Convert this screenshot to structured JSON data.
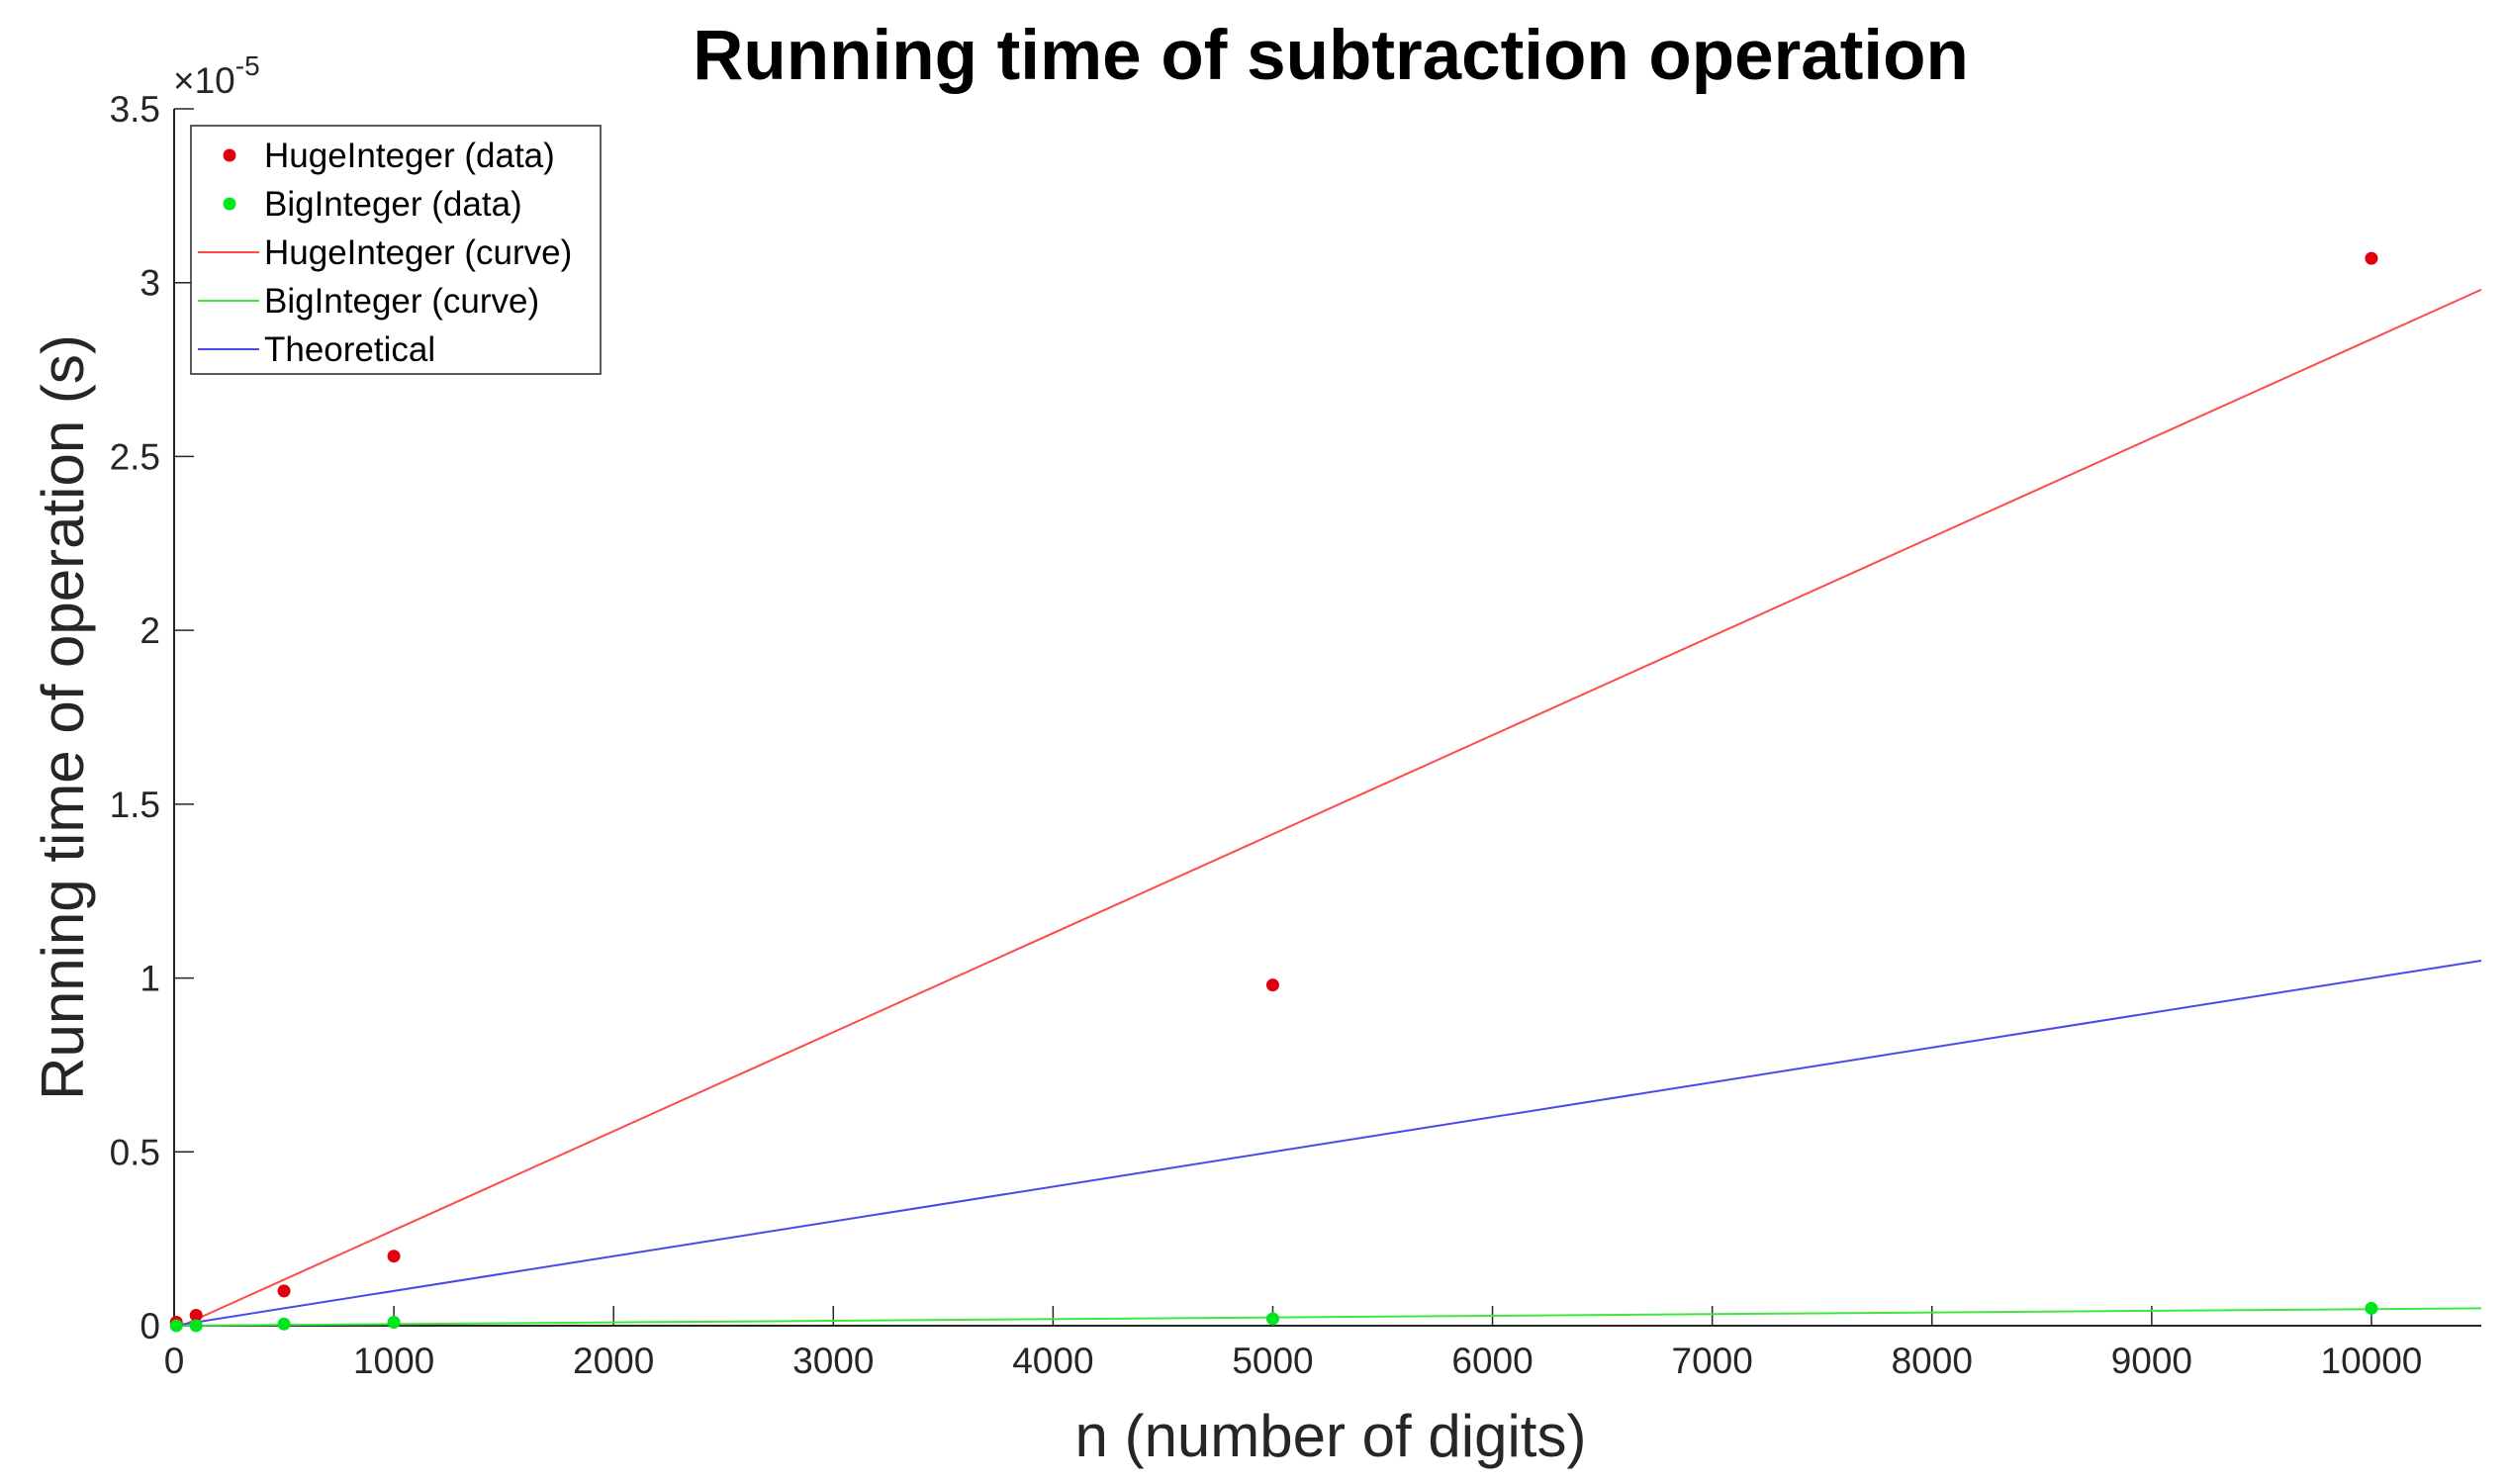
{
  "chart_data": {
    "type": "scatter",
    "title": "Running time of subtraction operation",
    "xlabel": "n (number of digits)",
    "ylabel": "Running time of operation (s)",
    "y_exponent_base": "10",
    "y_exponent_power": "-5",
    "xlim": [
      0,
      10500
    ],
    "ylim": [
      0,
      3.5
    ],
    "x_ticks": [
      0,
      1000,
      2000,
      3000,
      4000,
      5000,
      6000,
      7000,
      8000,
      9000,
      10000
    ],
    "x_tick_labels": [
      "0",
      "1000",
      "2000",
      "3000",
      "4000",
      "5000",
      "6000",
      "7000",
      "8000",
      "9000",
      "10000"
    ],
    "y_ticks": [
      0,
      0.5,
      1,
      1.5,
      2,
      2.5,
      3,
      3.5
    ],
    "y_tick_labels": [
      "0",
      "0.5",
      "1",
      "1.5",
      "2",
      "2.5",
      "3",
      "3.5"
    ],
    "grid": false,
    "legend_position": "top-left",
    "series": [
      {
        "name": "HugeInteger (data)",
        "kind": "points",
        "color": "#e0000f",
        "x": [
          10,
          100,
          500,
          1000,
          5000,
          10000
        ],
        "y": [
          0.01,
          0.03,
          0.1,
          0.2,
          0.98,
          3.07
        ]
      },
      {
        "name": "BigInteger (data)",
        "kind": "points",
        "color": "#00e61e",
        "x": [
          10,
          100,
          500,
          1000,
          5000,
          10000
        ],
        "y": [
          0.0,
          0.0,
          0.005,
          0.01,
          0.02,
          0.05
        ]
      },
      {
        "name": "HugeInteger (curve)",
        "kind": "line",
        "color": "#ff4a4a",
        "x": [
          0,
          10500
        ],
        "y": [
          -0.01,
          2.98
        ]
      },
      {
        "name": "BigInteger (curve)",
        "kind": "line",
        "color": "#3ee63e",
        "x": [
          0,
          10500
        ],
        "y": [
          0.0,
          0.05
        ]
      },
      {
        "name": "Theoretical",
        "kind": "line",
        "color": "#4a4ae6",
        "x": [
          0,
          10500
        ],
        "y": [
          0.0,
          1.05
        ]
      }
    ]
  }
}
